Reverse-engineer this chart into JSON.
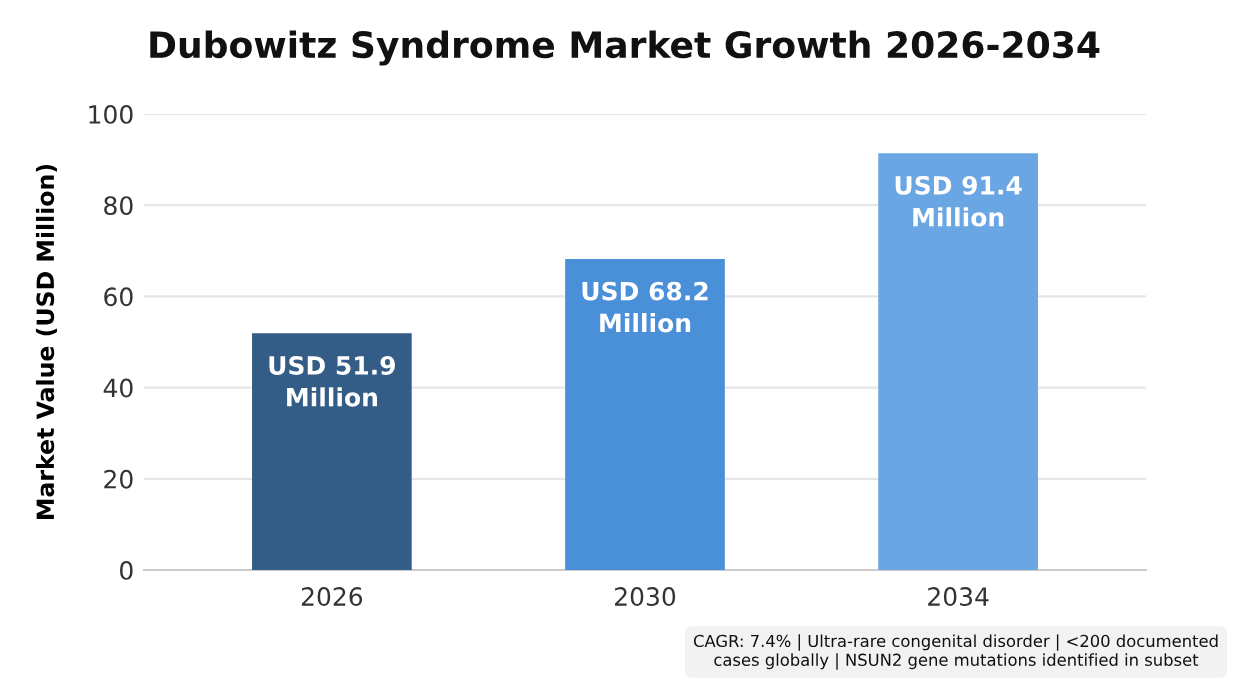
{
  "chart_data": {
    "type": "bar",
    "title": "Dubowitz Syndrome Market Growth 2026-2034",
    "ylabel": "Market Value (USD Million)",
    "categories": [
      "2026",
      "2030",
      "2034"
    ],
    "values": [
      51.9,
      68.2,
      91.4
    ],
    "colors": [
      "#335d87",
      "#4a90d9",
      "#6aa6e3"
    ],
    "value_labels": [
      "USD 51.9\nMillion",
      "USD 68.2\nMillion",
      "USD 91.4\nMillion"
    ],
    "ylim": [
      0,
      100
    ],
    "yticks": [
      0,
      20,
      40,
      60,
      80,
      100
    ],
    "grid": "y",
    "annotations": [
      "CAGR: 7.4% | Ultra-rare congenital disorder | <200 documented\ncases globally | NSUN2 gene mutations identified in subset"
    ]
  }
}
